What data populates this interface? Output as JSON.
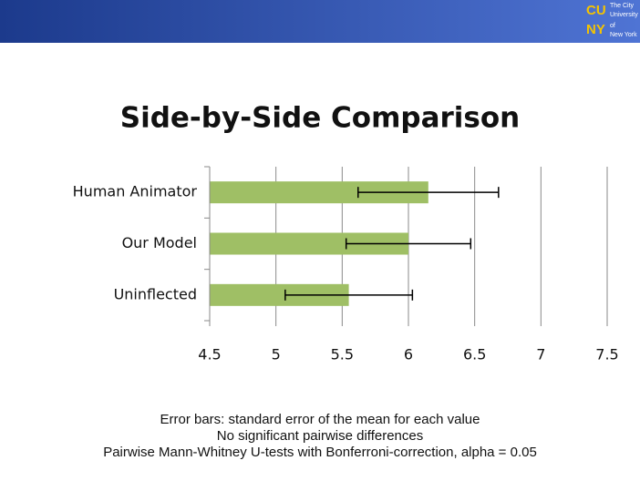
{
  "header": {
    "logo_mark": [
      "CU",
      "NY"
    ],
    "logo_text": [
      "The City",
      "University",
      "of",
      "New York"
    ]
  },
  "chart_data": {
    "type": "hbar",
    "title": "Side-by-Side Comparison",
    "categories": [
      "Human Animator",
      "Our Model",
      "Uninflected"
    ],
    "values": [
      6.15,
      6.0,
      5.55
    ],
    "errors": [
      0.53,
      0.47,
      0.48
    ],
    "color": "#9fbf65",
    "xlim": [
      4.5,
      7.5
    ],
    "xticks": [
      4.5,
      5,
      5.5,
      6,
      6.5,
      7,
      7.5
    ],
    "grid": true
  },
  "notes": [
    "Error bars: standard error of the mean for each value",
    "No significant pairwise differences",
    "Pairwise Mann-Whitney U-tests with Bonferroni-correction, alpha = 0.05"
  ]
}
